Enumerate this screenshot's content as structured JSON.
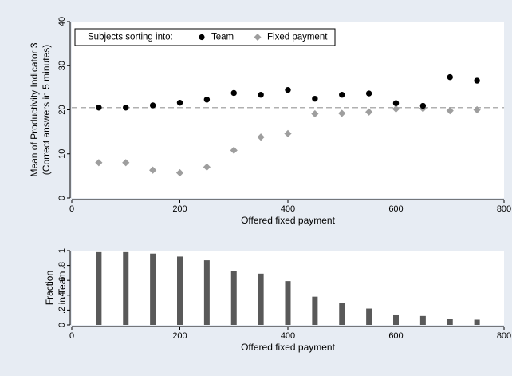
{
  "colors": {
    "background": "#e7ecf3",
    "plot_background": "#ffffff",
    "team": "#000000",
    "fixed": "#9e9e9e",
    "bar": "#595959",
    "reference_line": "#b0b0b0"
  },
  "legend": {
    "title": "Subjects sorting into:",
    "items": [
      {
        "label": "Team",
        "marker": "circle",
        "color": "#000000"
      },
      {
        "label": "Fixed payment",
        "marker": "diamond",
        "color": "#9e9e9e"
      }
    ],
    "position": "top"
  },
  "chart_data": [
    {
      "type": "scatter",
      "xlabel": "Offered fixed payment",
      "ylabel_lines": [
        "Mean of Productivity Indicator 3",
        "(Correct answers in 5 minutes)"
      ],
      "xlim": [
        0,
        800
      ],
      "ylim": [
        0,
        40
      ],
      "xticks": [
        0,
        200,
        400,
        600,
        800
      ],
      "yticks": [
        0,
        10,
        20,
        30,
        40
      ],
      "reference_line": {
        "y": 20.5,
        "style": "dashed"
      },
      "series": [
        {
          "name": "Team",
          "marker": "circle",
          "x": [
            50,
            100,
            150,
            200,
            250,
            300,
            350,
            400,
            450,
            500,
            550,
            600,
            650,
            700,
            750
          ],
          "y": [
            20.5,
            20.5,
            21.0,
            21.6,
            22.3,
            23.8,
            23.4,
            24.5,
            22.5,
            23.4,
            23.7,
            21.5,
            20.9,
            27.4,
            26.6
          ]
        },
        {
          "name": "Fixed payment",
          "marker": "diamond",
          "x": [
            50,
            100,
            150,
            200,
            250,
            300,
            350,
            400,
            450,
            500,
            550,
            600,
            650,
            700,
            750
          ],
          "y": [
            8.0,
            8.0,
            6.3,
            5.7,
            7.0,
            10.8,
            13.8,
            14.6,
            19.1,
            19.2,
            19.5,
            20.2,
            20.3,
            19.8,
            20.0
          ]
        }
      ]
    },
    {
      "type": "bar",
      "xlabel": "Offered fixed payment",
      "ylabel_lines": [
        "Fraction",
        "in Team"
      ],
      "xlim": [
        0,
        800
      ],
      "ylim": [
        0,
        1
      ],
      "xticks": [
        0,
        200,
        400,
        600,
        800
      ],
      "yticks": [
        0,
        0.2,
        0.4,
        0.6,
        0.8,
        1
      ],
      "ytick_labels": [
        "0",
        ".2",
        ".4",
        ".6",
        ".8",
        "1"
      ],
      "x": [
        50,
        100,
        150,
        200,
        250,
        300,
        350,
        400,
        450,
        500,
        550,
        600,
        650,
        700,
        750
      ],
      "values": [
        0.98,
        0.98,
        0.96,
        0.92,
        0.87,
        0.73,
        0.69,
        0.59,
        0.38,
        0.3,
        0.22,
        0.14,
        0.12,
        0.08,
        0.07
      ]
    }
  ]
}
